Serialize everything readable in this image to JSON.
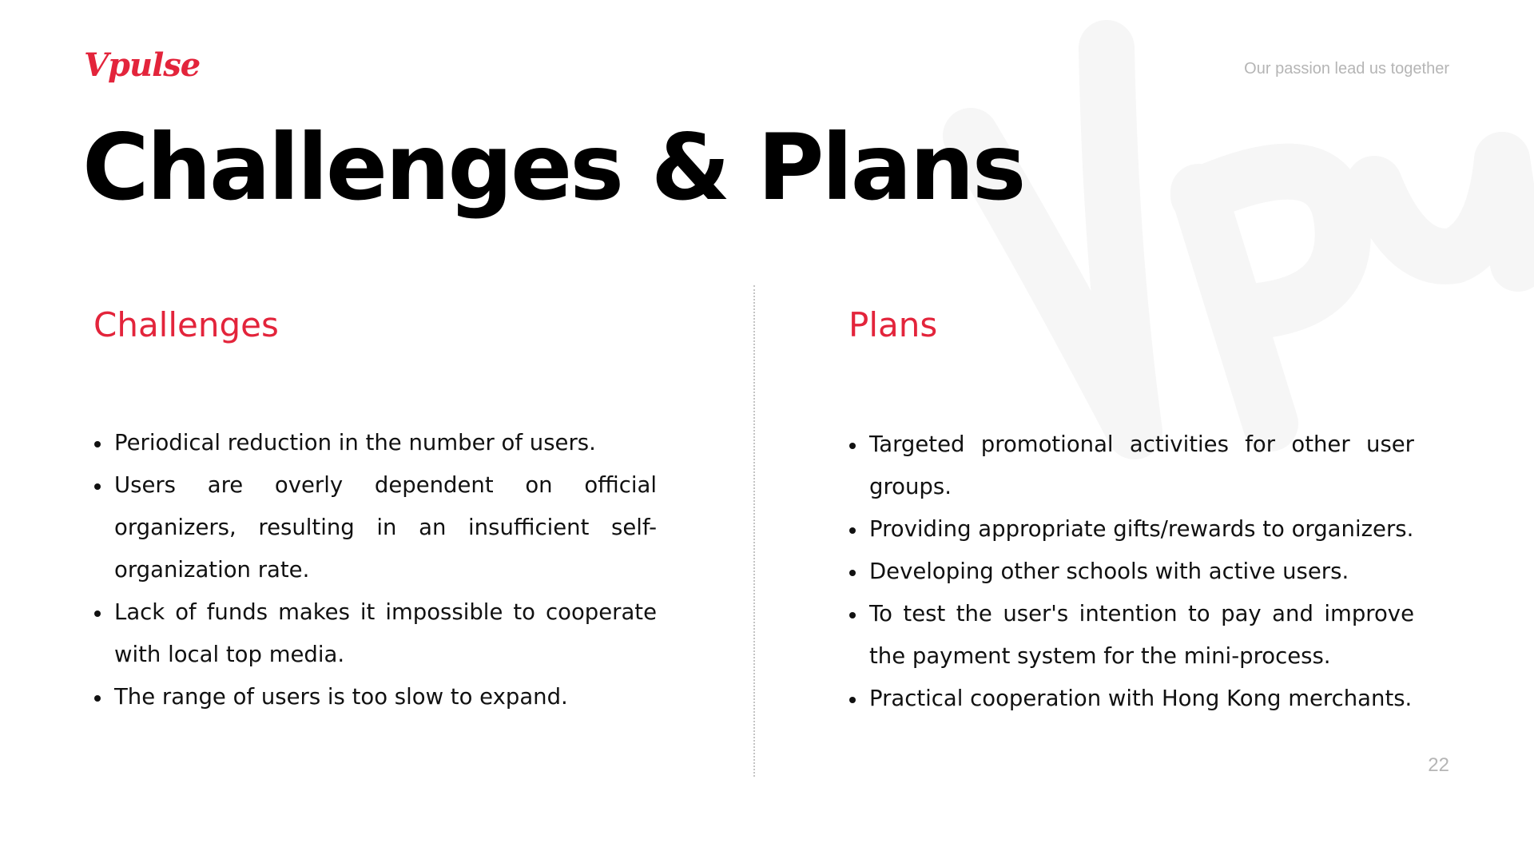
{
  "colors": {
    "accent": "#e3243b",
    "title": "#000000",
    "body_text": "#111111",
    "muted": "#b5b5b5",
    "watermark": "#f6f6f6"
  },
  "header": {
    "logo_text": "Vpulse",
    "tagline": "Our passion lead us together"
  },
  "title": "Challenges & Plans",
  "challenges": {
    "heading": "Challenges",
    "items": [
      "Periodical reduction in the number of users.",
      "Users are overly dependent on official organizers, resulting in an insufficient self-organization rate.",
      "Lack of funds makes it impossible to cooperate with local top media.",
      "The range of users is too slow to expand."
    ]
  },
  "plans": {
    "heading": "Plans",
    "items": [
      "Targeted promotional activities for other user groups.",
      "Providing appropriate gifts/rewards to organizers.",
      "Developing other schools with active users.",
      "To test the user's intention to pay and improve the payment system for the mini-process.",
      "Practical cooperation with Hong Kong merchants."
    ]
  },
  "footer": {
    "page_number": "22"
  }
}
